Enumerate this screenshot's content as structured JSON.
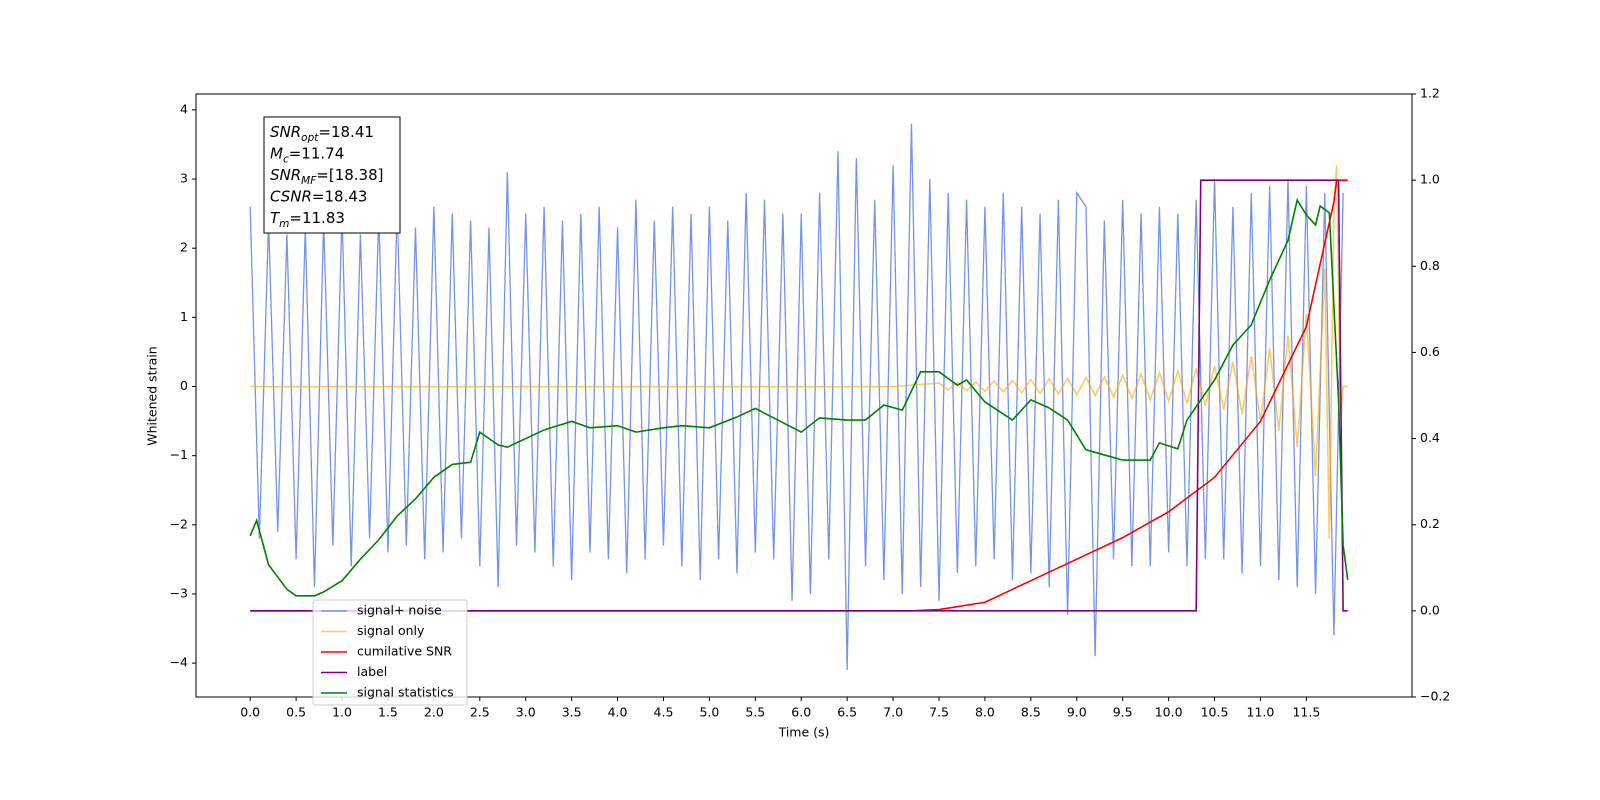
{
  "chart_data": {
    "type": "line",
    "xlabel": "Time (s)",
    "ylabel": "Whitened strain",
    "xlim": [
      -0.59,
      12.65
    ],
    "ylim": [
      -4.49,
      4.23
    ],
    "y2lim": [
      -0.2,
      1.2
    ],
    "xticks": [
      {
        "value": 0,
        "label": "0.0"
      },
      {
        "value": 0.5,
        "label": "0.5"
      },
      {
        "value": 1,
        "label": "1.0"
      },
      {
        "value": 1.5,
        "label": "1.5"
      },
      {
        "value": 2,
        "label": "2.0"
      },
      {
        "value": 2.5,
        "label": "2.5"
      },
      {
        "value": 3,
        "label": "3.0"
      },
      {
        "value": 3.5,
        "label": "3.5"
      },
      {
        "value": 4,
        "label": "4.0"
      },
      {
        "value": 4.5,
        "label": "4.5"
      },
      {
        "value": 5,
        "label": "5.0"
      },
      {
        "value": 5.5,
        "label": "5.5"
      },
      {
        "value": 6,
        "label": "6.0"
      },
      {
        "value": 6.5,
        "label": "6.5"
      },
      {
        "value": 7,
        "label": "7.0"
      },
      {
        "value": 7.5,
        "label": "7.5"
      },
      {
        "value": 8,
        "label": "8.0"
      },
      {
        "value": 8.5,
        "label": "8.5"
      },
      {
        "value": 9,
        "label": "9.0"
      },
      {
        "value": 9.5,
        "label": "9.5"
      },
      {
        "value": 10,
        "label": "10.0"
      },
      {
        "value": 10.5,
        "label": "10.5"
      },
      {
        "value": 11,
        "label": "11.0"
      },
      {
        "value": 11.5,
        "label": "11.5"
      }
    ],
    "yticks": [
      {
        "value": -4,
        "label": "−4"
      },
      {
        "value": -3,
        "label": "−3"
      },
      {
        "value": -2,
        "label": "−2"
      },
      {
        "value": -1,
        "label": "−1"
      },
      0,
      1,
      2,
      3,
      4
    ],
    "y2ticks": [
      {
        "value": -0.2,
        "label": "−0.2"
      },
      {
        "value": 0,
        "label": "0.0"
      },
      {
        "value": 0.2,
        "label": "0.2"
      },
      {
        "value": 0.4,
        "label": "0.4"
      },
      {
        "value": 0.6,
        "label": "0.6"
      },
      {
        "value": 0.8,
        "label": "0.8"
      },
      {
        "value": 1,
        "label": "1.0"
      },
      {
        "value": 1.2,
        "label": "1.2"
      }
    ],
    "legend": "lower left",
    "textbox": [
      {
        "symbol": "SNR",
        "subscript": "opt",
        "text": "=18.41"
      },
      {
        "symbol": "M",
        "subscript": "c",
        "text": "=11.74"
      },
      {
        "symbol": "SNR",
        "subscript": "MF",
        "text": "=[18.38]"
      },
      {
        "symbol": "CSNR",
        "subscript": "",
        "text": "=18.43"
      },
      {
        "symbol": "T",
        "subscript": "m",
        "text": "=11.83"
      }
    ],
    "series": [
      {
        "name": "signal+ noise",
        "color": "#7494e6",
        "opacity": 1,
        "x": [
          0.0,
          0.1,
          0.2,
          0.3,
          0.4,
          0.5,
          0.6,
          0.7,
          0.8,
          0.9,
          1.0,
          1.1,
          1.2,
          1.3,
          1.4,
          1.5,
          1.6,
          1.7,
          1.8,
          1.9,
          2.0,
          2.1,
          2.2,
          2.3,
          2.4,
          2.5,
          2.6,
          2.7,
          2.8,
          2.9,
          3.0,
          3.1,
          3.2,
          3.3,
          3.4,
          3.5,
          3.6,
          3.7,
          3.8,
          3.9,
          4.0,
          4.1,
          4.2,
          4.3,
          4.4,
          4.5,
          4.6,
          4.7,
          4.8,
          4.9,
          5.0,
          5.1,
          5.2,
          5.3,
          5.4,
          5.5,
          5.6,
          5.7,
          5.8,
          5.9,
          6.0,
          6.1,
          6.2,
          6.3,
          6.4,
          6.5,
          6.6,
          6.7,
          6.8,
          6.9,
          7.0,
          7.1,
          7.2,
          7.3,
          7.4,
          7.5,
          7.6,
          7.7,
          7.8,
          7.9,
          8.0,
          8.1,
          8.2,
          8.3,
          8.4,
          8.5,
          8.6,
          8.7,
          8.8,
          8.9,
          9.0,
          9.1,
          9.2,
          9.3,
          9.4,
          9.5,
          9.6,
          9.7,
          9.8,
          9.9,
          10.0,
          10.1,
          10.2,
          10.3,
          10.4,
          10.5,
          10.6,
          10.7,
          10.8,
          10.9,
          11.0,
          11.1,
          11.2,
          11.3,
          11.4,
          11.5,
          11.6,
          11.7,
          11.8,
          11.9
        ],
        "values": [
          2.6,
          -2.2,
          2.4,
          -2.1,
          2.2,
          -2.5,
          2.3,
          -2.9,
          2.4,
          -2.3,
          2.5,
          -2.6,
          2.2,
          -2.2,
          2.5,
          -2.4,
          2.6,
          -2.3,
          2.3,
          -2.5,
          2.6,
          -2.4,
          2.5,
          -2.2,
          2.4,
          -2.6,
          2.3,
          -2.9,
          3.1,
          -2.3,
          2.5,
          -2.4,
          2.6,
          -2.6,
          2.4,
          -2.8,
          2.5,
          -2.4,
          2.6,
          -2.5,
          2.3,
          -2.7,
          2.7,
          -2.5,
          2.4,
          -2.3,
          2.6,
          -2.6,
          2.5,
          -2.8,
          2.6,
          -2.5,
          2.4,
          -2.7,
          2.8,
          -2.4,
          2.7,
          -2.5,
          2.5,
          -3.1,
          2.5,
          -3.0,
          2.8,
          -2.5,
          3.4,
          -4.1,
          3.3,
          -2.6,
          2.7,
          -2.8,
          3.2,
          -3.0,
          3.8,
          -2.9,
          3.0,
          -3.1,
          2.8,
          -2.7,
          2.7,
          -2.6,
          2.6,
          -2.5,
          2.8,
          -2.8,
          2.6,
          -2.7,
          2.5,
          -2.9,
          2.7,
          -3.3,
          2.8,
          2.6,
          -3.9,
          2.4,
          -2.5,
          2.7,
          -2.6,
          2.5,
          -2.6,
          2.6,
          -2.4,
          2.5,
          -2.6,
          2.7,
          -2.5,
          3.0,
          -2.5,
          2.6,
          -2.7,
          2.8,
          -2.6,
          2.9,
          -2.8,
          3.0,
          -2.9,
          2.9,
          -3.0,
          2.8,
          -3.6,
          2.8
        ]
      },
      {
        "name": "signal only",
        "color": "#ffa500",
        "opacity": 0.6,
        "x": [
          0.0,
          7.0,
          7.5,
          7.6,
          7.7,
          7.8,
          7.9,
          8.0,
          8.1,
          8.2,
          8.3,
          8.4,
          8.5,
          8.6,
          8.7,
          8.8,
          8.9,
          9.0,
          9.1,
          9.2,
          9.3,
          9.4,
          9.5,
          9.6,
          9.7,
          9.8,
          9.9,
          10.0,
          10.1,
          10.2,
          10.3,
          10.4,
          10.5,
          10.6,
          10.7,
          10.8,
          10.9,
          11.0,
          11.1,
          11.2,
          11.3,
          11.4,
          11.5,
          11.6,
          11.7,
          11.75,
          11.8,
          11.83,
          11.87,
          11.9,
          11.95
        ],
        "values": [
          0.0,
          0.0,
          0.05,
          -0.05,
          0.06,
          -0.06,
          0.07,
          -0.07,
          0.08,
          -0.08,
          0.09,
          -0.09,
          0.1,
          -0.1,
          0.11,
          -0.11,
          0.12,
          -0.12,
          0.13,
          -0.13,
          0.14,
          -0.15,
          0.16,
          -0.17,
          0.18,
          -0.19,
          0.2,
          -0.21,
          0.22,
          -0.24,
          0.26,
          -0.28,
          0.3,
          -0.33,
          0.36,
          -0.4,
          0.44,
          -0.5,
          0.56,
          -0.64,
          0.74,
          -0.88,
          1.05,
          -1.3,
          1.7,
          -2.2,
          2.6,
          3.2,
          -0.5,
          0.0,
          0.0
        ]
      },
      {
        "name": "cumilative SNR",
        "color": "#ff0000",
        "opacity": 1,
        "axis": "y2",
        "x": [
          0.0,
          7.2,
          7.5,
          8.0,
          8.5,
          9.0,
          9.5,
          10.0,
          10.5,
          11.0,
          11.5,
          11.8,
          11.83,
          11.95
        ],
        "values": [
          0.0,
          0.0,
          0.003,
          0.02,
          0.07,
          0.12,
          0.17,
          0.23,
          0.31,
          0.44,
          0.66,
          0.95,
          1.0,
          1.0
        ]
      },
      {
        "name": "label",
        "color": "#800080",
        "opacity": 1,
        "axis": "y2",
        "x": [
          0.0,
          10.3,
          10.35,
          11.85,
          11.9,
          11.95
        ],
        "values": [
          0.0,
          0.0,
          1.0,
          1.0,
          0.0,
          0.0
        ]
      },
      {
        "name": "signal statistics",
        "color": "#008000",
        "opacity": 1,
        "axis": "y2",
        "x": [
          0.0,
          0.07,
          0.2,
          0.4,
          0.5,
          0.7,
          0.8,
          1.0,
          1.2,
          1.4,
          1.6,
          1.8,
          2.0,
          2.2,
          2.4,
          2.5,
          2.7,
          2.8,
          3.0,
          3.2,
          3.5,
          3.7,
          4.0,
          4.2,
          4.5,
          4.7,
          5.0,
          5.3,
          5.5,
          5.7,
          6.0,
          6.2,
          6.5,
          6.7,
          6.9,
          7.1,
          7.3,
          7.5,
          7.7,
          7.8,
          8.0,
          8.3,
          8.5,
          8.7,
          8.9,
          9.1,
          9.3,
          9.5,
          9.8,
          9.9,
          10.1,
          10.2,
          10.5,
          10.7,
          10.9,
          11.1,
          11.3,
          11.4,
          11.5,
          11.6,
          11.65,
          11.75,
          11.85,
          11.9,
          11.95
        ],
        "values": [
          0.174,
          0.21,
          0.107,
          0.05,
          0.035,
          0.035,
          0.044,
          0.07,
          0.12,
          0.165,
          0.22,
          0.26,
          0.31,
          0.34,
          0.345,
          0.415,
          0.385,
          0.38,
          0.4,
          0.42,
          0.44,
          0.425,
          0.43,
          0.415,
          0.425,
          0.43,
          0.425,
          0.45,
          0.47,
          0.448,
          0.415,
          0.448,
          0.443,
          0.443,
          0.478,
          0.466,
          0.555,
          0.555,
          0.524,
          0.536,
          0.485,
          0.443,
          0.49,
          0.471,
          0.443,
          0.374,
          0.362,
          0.35,
          0.35,
          0.39,
          0.376,
          0.443,
          0.536,
          0.617,
          0.664,
          0.768,
          0.86,
          0.954,
          0.919,
          0.896,
          0.94,
          0.924,
          0.49,
          0.153,
          0.072
        ]
      }
    ]
  }
}
